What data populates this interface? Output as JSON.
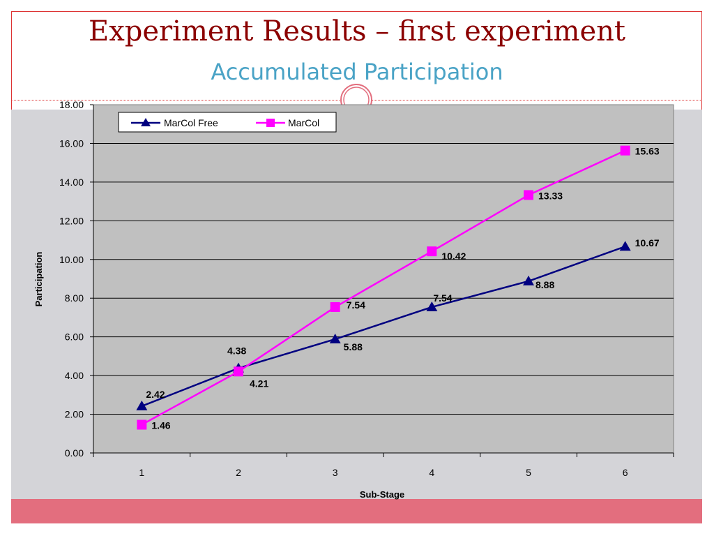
{
  "slide": {
    "title": "Experiment Results – first experiment",
    "subtitle": "Accumulated Participation",
    "colors": {
      "title": "#8b0000",
      "subtitle": "#4aa3c6",
      "accent_bar": "#e36e7e",
      "frame": "#dd3333"
    }
  },
  "chart_data": {
    "type": "line",
    "title": "",
    "xlabel": "Sub-Stage",
    "ylabel": "Participation",
    "categories": [
      "1",
      "2",
      "3",
      "4",
      "5",
      "6"
    ],
    "ylim": [
      0,
      18
    ],
    "yticks": [
      "0.00",
      "2.00",
      "4.00",
      "6.00",
      "8.00",
      "10.00",
      "12.00",
      "14.00",
      "16.00",
      "18.00"
    ],
    "grid": true,
    "legend_position": "top-left",
    "series": [
      {
        "name": "MarCol Free",
        "color": "#000080",
        "marker": "triangle",
        "values": [
          2.42,
          4.38,
          5.88,
          7.54,
          8.88,
          10.67
        ],
        "labels": [
          "2.42",
          "4.38",
          "5.88",
          "7.54",
          "8.88",
          "10.67"
        ]
      },
      {
        "name": "MarCol",
        "color": "#ff00ff",
        "marker": "square",
        "values": [
          1.46,
          4.21,
          7.54,
          10.42,
          13.33,
          15.63
        ],
        "labels": [
          "1.46",
          "4.21",
          "7.54",
          "10.42",
          "13.33",
          "15.63"
        ]
      }
    ]
  }
}
